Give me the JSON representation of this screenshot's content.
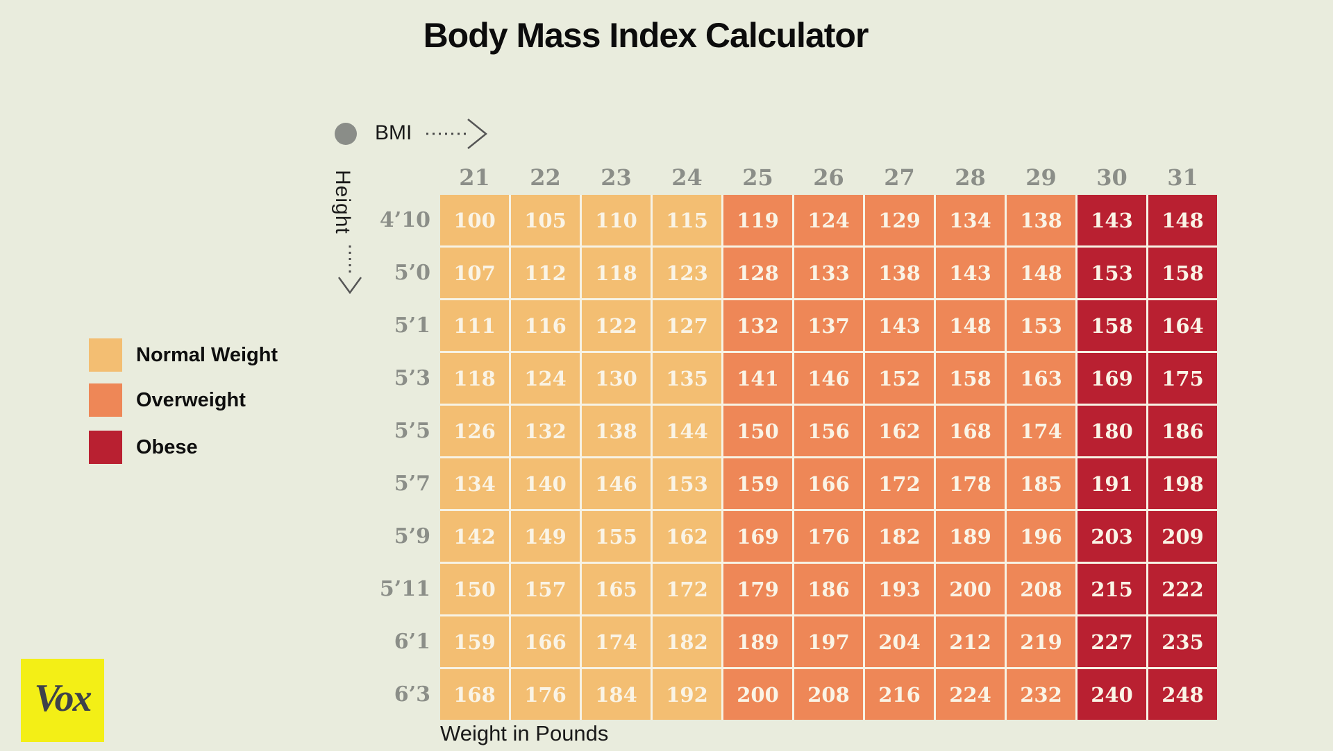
{
  "colors": {
    "background": "#e9ecdd",
    "grid_line": "#f7f3e5",
    "cell_text": "#faf4e6",
    "axis_gray": "#8b8e88",
    "logo_background": "#f3ef16",
    "logo_text": "#3e424a"
  },
  "logo": {
    "text": "Vox"
  },
  "chart_data": {
    "type": "heatmap",
    "title": "Body Mass Index Calculator",
    "x_axis": {
      "label": "BMI",
      "ticks": [
        21,
        22,
        23,
        24,
        25,
        26,
        27,
        28,
        29,
        30,
        31
      ]
    },
    "y_axis": {
      "label": "Height",
      "ticks": [
        "4’10",
        "5’0",
        "5’1",
        "5’3",
        "5’5",
        "5’7",
        "5’9",
        "5’11",
        "6’1",
        "6’3"
      ]
    },
    "cell_unit_label": "Weight in Pounds",
    "legend_position": "left",
    "categories": [
      {
        "label": "Normal Weight",
        "color": "#f3be72",
        "bmi_range": [
          21,
          24
        ]
      },
      {
        "label": "Overweight",
        "color": "#ee8757",
        "bmi_range": [
          25,
          29
        ]
      },
      {
        "label": "Obese",
        "color": "#b92031",
        "bmi_range": [
          30,
          31
        ]
      }
    ],
    "rows": [
      {
        "height": "4’10",
        "weights": [
          100,
          105,
          110,
          115,
          119,
          124,
          129,
          134,
          138,
          143,
          148
        ]
      },
      {
        "height": "5’0",
        "weights": [
          107,
          112,
          118,
          123,
          128,
          133,
          138,
          143,
          148,
          153,
          158
        ]
      },
      {
        "height": "5’1",
        "weights": [
          111,
          116,
          122,
          127,
          132,
          137,
          143,
          148,
          153,
          158,
          164
        ]
      },
      {
        "height": "5’3",
        "weights": [
          118,
          124,
          130,
          135,
          141,
          146,
          152,
          158,
          163,
          169,
          175
        ]
      },
      {
        "height": "5’5",
        "weights": [
          126,
          132,
          138,
          144,
          150,
          156,
          162,
          168,
          174,
          180,
          186
        ]
      },
      {
        "height": "5’7",
        "weights": [
          134,
          140,
          146,
          153,
          159,
          166,
          172,
          178,
          185,
          191,
          198
        ]
      },
      {
        "height": "5’9",
        "weights": [
          142,
          149,
          155,
          162,
          169,
          176,
          182,
          189,
          196,
          203,
          209
        ]
      },
      {
        "height": "5’11",
        "weights": [
          150,
          157,
          165,
          172,
          179,
          186,
          193,
          200,
          208,
          215,
          222
        ]
      },
      {
        "height": "6’1",
        "weights": [
          159,
          166,
          174,
          182,
          189,
          197,
          204,
          212,
          219,
          227,
          235
        ]
      },
      {
        "height": "6’3",
        "weights": [
          168,
          176,
          184,
          192,
          200,
          208,
          216,
          224,
          232,
          240,
          248
        ]
      }
    ]
  }
}
